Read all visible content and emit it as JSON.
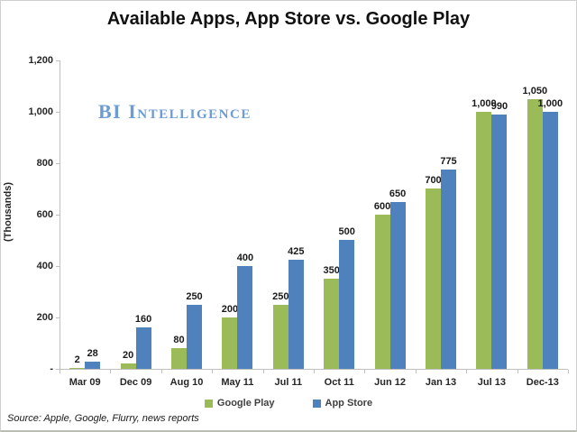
{
  "title": "Available Apps, App Store vs. Google Play",
  "watermark": "BI Intelligence",
  "source_note": "Source: Apple, Google, Flurry, news reports",
  "colors": {
    "google_play": "#9bbb59",
    "app_store": "#4f81bd",
    "axis": "#bfbfbf",
    "watermark": "#6d9cd3"
  },
  "legend": {
    "items": [
      {
        "label": "Google Play",
        "swatch_color": "#9bbb59"
      },
      {
        "label": "App Store",
        "swatch_color": "#4f81bd"
      }
    ],
    "position": "bottom"
  },
  "chart_data": {
    "type": "bar",
    "title": "Available Apps, App Store vs. Google Play",
    "xlabel": "",
    "ylabel": "(Thousands)",
    "ylim": [
      0,
      1200
    ],
    "yticks": [
      0,
      200,
      400,
      600,
      800,
      1000,
      1200
    ],
    "ytick_labels": [
      "-",
      "200",
      "400",
      "600",
      "800",
      "1,000",
      "1,200"
    ],
    "grid": false,
    "legend_position": "bottom",
    "categories": [
      "Mar 09",
      "Dec 09",
      "Aug 10",
      "May 11",
      "Jul 11",
      "Oct 11",
      "Jun 12",
      "Jan 13",
      "Jul 13",
      "Dec-13"
    ],
    "series": [
      {
        "name": "Google Play",
        "color": "#9bbb59",
        "values": [
          2,
          20,
          80,
          200,
          250,
          350,
          600,
          700,
          1000,
          1050
        ],
        "labels": [
          "2",
          "20",
          "80",
          "200",
          "250",
          "350",
          "600",
          "700",
          "1,000",
          "1,050"
        ]
      },
      {
        "name": "App Store",
        "color": "#4f81bd",
        "values": [
          28,
          160,
          250,
          400,
          425,
          500,
          650,
          775,
          990,
          1000
        ],
        "labels": [
          "28",
          "160",
          "250",
          "400",
          "425",
          "500",
          "650",
          "775",
          "990",
          "1,000"
        ]
      }
    ]
  }
}
